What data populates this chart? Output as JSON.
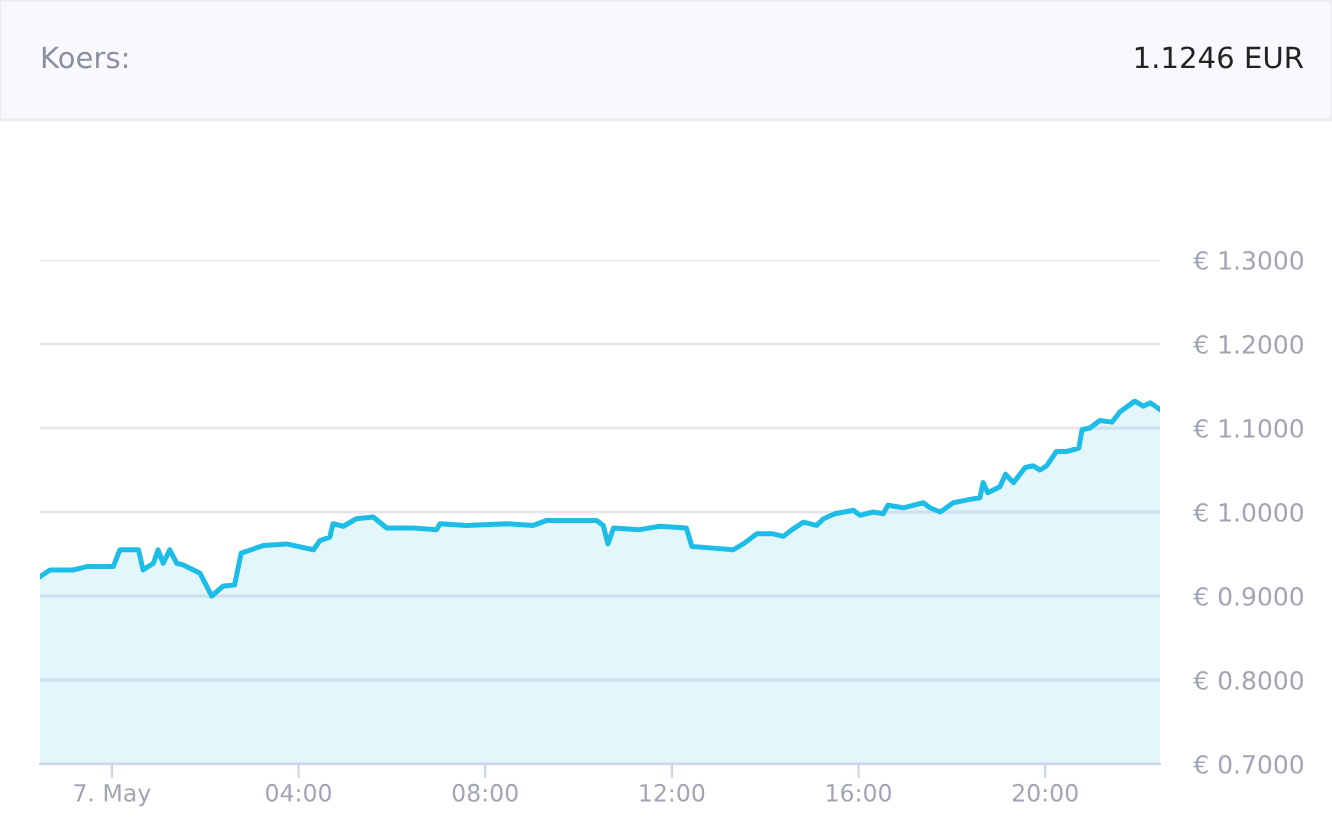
{
  "chart_data": {
    "type": "area",
    "title": "Koers:",
    "annotations": [
      "1.1246 EUR"
    ],
    "color": "#1cbde6",
    "x": [
      -1.54,
      -1.33,
      -0.83,
      -0.54,
      0.03,
      0.17,
      0.57,
      0.67,
      0.89,
      0.99,
      1.1,
      1.24,
      1.39,
      1.53,
      1.89,
      2.14,
      2.39,
      2.63,
      2.77,
      3.24,
      3.74,
      4.32,
      4.46,
      4.67,
      4.74,
      4.96,
      5.24,
      5.6,
      5.89,
      6.46,
      6.96,
      7.03,
      7.6,
      8.46,
      9.03,
      9.32,
      10.39,
      10.53,
      10.63,
      10.75,
      11.31,
      11.74,
      12.31,
      12.43,
      12.89,
      13.31,
      13.53,
      13.82,
      14.17,
      14.39,
      14.6,
      14.82,
      15.1,
      15.25,
      15.49,
      15.89,
      16.03,
      16.31,
      16.53,
      16.63,
      16.96,
      17.39,
      17.53,
      17.75,
      18.03,
      18.39,
      18.6,
      18.67,
      18.77,
      19.03,
      19.15,
      19.32,
      19.57,
      19.74,
      19.89,
      20.03,
      20.24,
      20.46,
      20.72,
      20.79,
      20.96,
      21.17,
      21.43,
      21.6,
      21.92,
      22.1,
      22.25,
      22.46
    ],
    "values": [
      0.923,
      0.931,
      0.931,
      0.935,
      0.935,
      0.955,
      0.955,
      0.931,
      0.939,
      0.955,
      0.939,
      0.955,
      0.939,
      0.937,
      0.927,
      0.9,
      0.912,
      0.913,
      0.951,
      0.96,
      0.962,
      0.955,
      0.966,
      0.97,
      0.986,
      0.983,
      0.992,
      0.994,
      0.981,
      0.981,
      0.979,
      0.986,
      0.984,
      0.986,
      0.984,
      0.99,
      0.99,
      0.984,
      0.962,
      0.981,
      0.979,
      0.983,
      0.981,
      0.959,
      0.957,
      0.955,
      0.962,
      0.974,
      0.974,
      0.971,
      0.98,
      0.988,
      0.984,
      0.992,
      0.998,
      1.002,
      0.996,
      1.0,
      0.998,
      1.008,
      1.005,
      1.011,
      1.005,
      1.0,
      1.011,
      1.015,
      1.017,
      1.035,
      1.023,
      1.03,
      1.045,
      1.035,
      1.053,
      1.055,
      1.05,
      1.055,
      1.072,
      1.072,
      1.076,
      1.098,
      1.1,
      1.109,
      1.107,
      1.119,
      1.132,
      1.126,
      1.13,
      1.122
    ],
    "xlim": [
      -1.54,
      22.46
    ],
    "xticks": [
      {
        "value": 0,
        "label": "7. May"
      },
      {
        "value": 4,
        "label": "04:00"
      },
      {
        "value": 8,
        "label": "08:00"
      },
      {
        "value": 12,
        "label": "12:00"
      },
      {
        "value": 16,
        "label": "16:00"
      },
      {
        "value": 20,
        "label": "20:00"
      }
    ],
    "ylim": [
      0.7,
      1.3
    ],
    "yticks": [
      {
        "value": 0.7,
        "label": "€ 0.7000"
      },
      {
        "value": 0.8,
        "label": "€ 0.8000"
      },
      {
        "value": 0.9,
        "label": "€ 0.9000"
      },
      {
        "value": 1.0,
        "label": "€ 1.0000"
      },
      {
        "value": 1.1,
        "label": "€ 1.1000"
      },
      {
        "value": 1.2,
        "label": "€ 1.2000"
      },
      {
        "value": 1.3,
        "label": "€ 1.3000"
      }
    ],
    "grid": "y",
    "legend": false
  }
}
